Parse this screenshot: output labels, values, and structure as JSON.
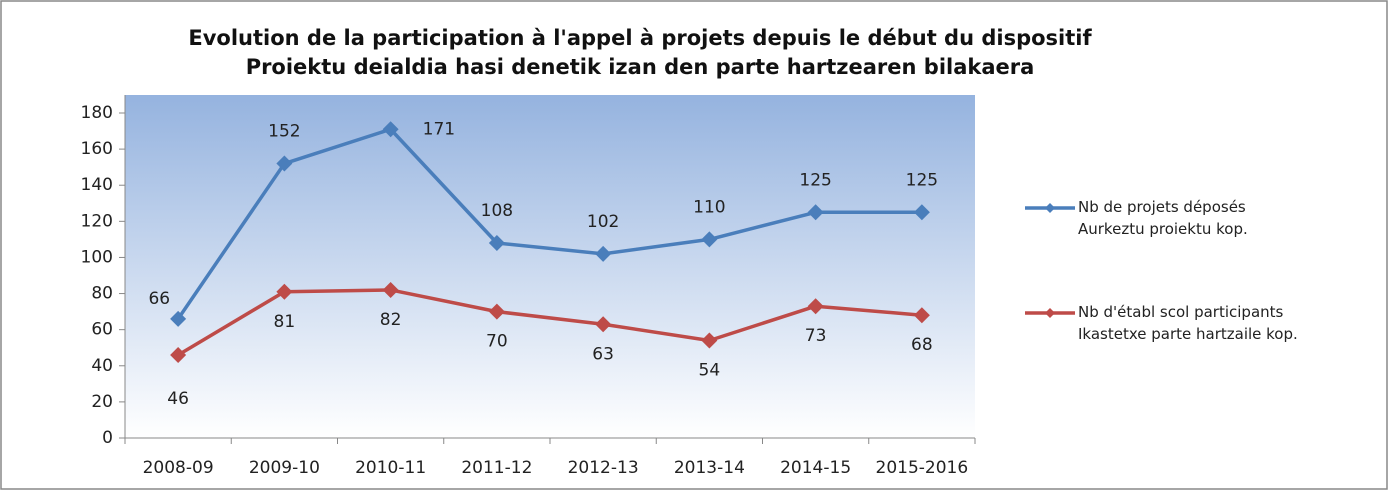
{
  "chart_data": {
    "type": "line",
    "title": "Evolution de la participation à l'appel à projets depuis le début du dispositif\nProiektu deialdia hasi denetik izan den parte hartzearen bilakaera",
    "categories": [
      "2008-09",
      "2009-10",
      "2010-11",
      "2011-12",
      "2012-13",
      "2013-14",
      "2014-15",
      "2015-2016"
    ],
    "series": [
      {
        "name": "Nb de projets déposés\nAurkeztu proiektu kop.",
        "color": "#4a7ebb",
        "values": [
          66,
          152,
          171,
          108,
          102,
          110,
          125,
          125
        ]
      },
      {
        "name": "Nb d'établ scol participants\nIkastetxe parte hartzaile kop.",
        "color": "#be4b48",
        "values": [
          46,
          81,
          82,
          70,
          63,
          54,
          73,
          68
        ]
      }
    ],
    "ylim": [
      0,
      180
    ],
    "yticks": [
      0,
      20,
      40,
      60,
      80,
      100,
      120,
      140,
      160,
      180
    ]
  }
}
